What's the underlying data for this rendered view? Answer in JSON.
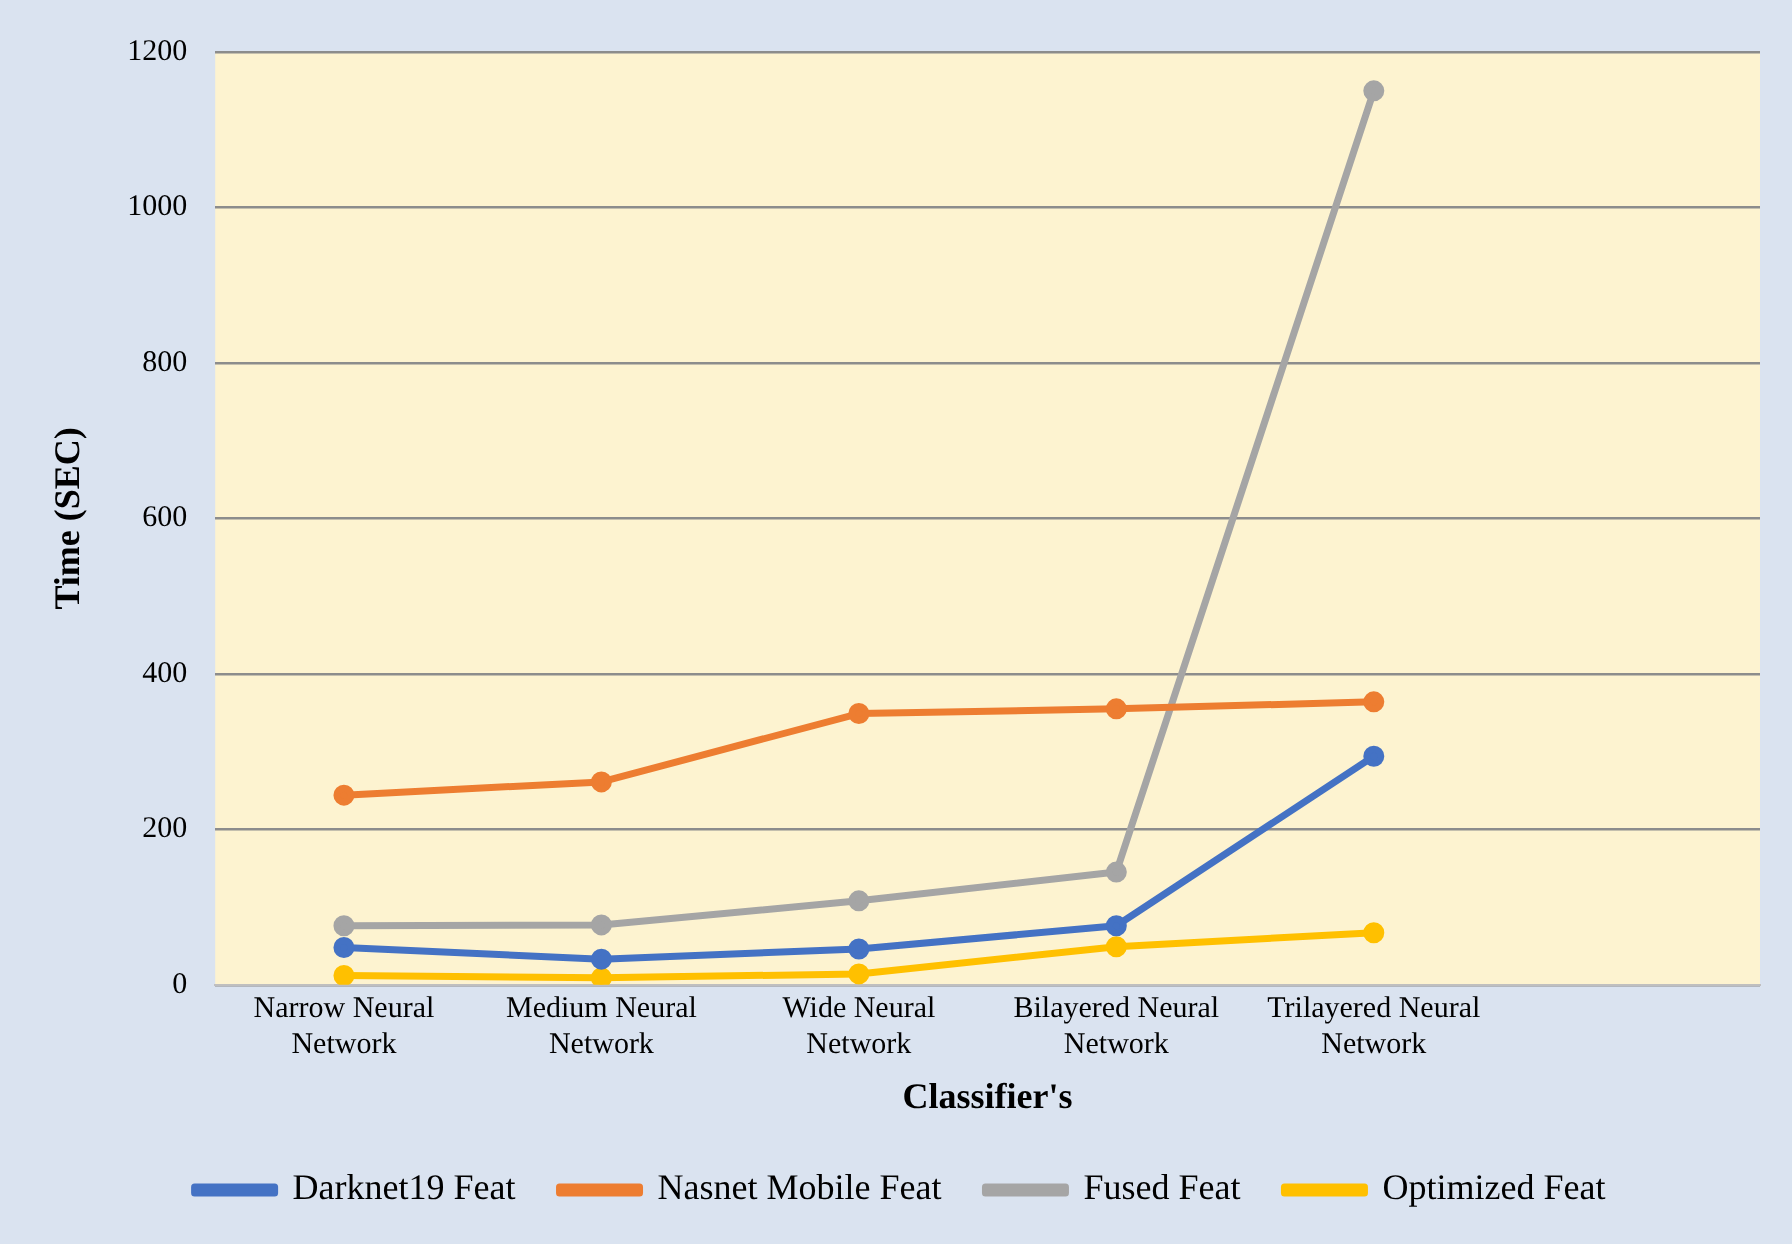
{
  "chart_data": {
    "type": "line",
    "xlabel": "Classifier's",
    "ylabel": "Time (SEC)",
    "categories": [
      "Narrow Neural Network",
      "Medium Neural Network",
      "Wide Neural Network",
      "Bilayered Neural Network",
      "Trilayered Neural Network",
      null
    ],
    "series": [
      {
        "name": "Darknet19 Feat",
        "color": "#4472c4",
        "values": [
          48,
          33,
          46,
          76,
          294,
          null
        ]
      },
      {
        "name": "Nasnet Mobile Feat",
        "color": "#ed7d31",
        "values": [
          244,
          261,
          349,
          355,
          364,
          null
        ]
      },
      {
        "name": "Fused Feat",
        "color": "#a5a5a5",
        "values": [
          76,
          77,
          108,
          145,
          1150,
          null
        ]
      },
      {
        "name": "Optimized Feat",
        "color": "#ffc000",
        "values": [
          12,
          9,
          14,
          49,
          67,
          null
        ]
      }
    ],
    "ylim": [
      0,
      1200
    ],
    "yticks": [
      0,
      200,
      400,
      600,
      800,
      1000,
      1200
    ],
    "grid": "y",
    "legend": "bottom",
    "marker": "circle",
    "line_style": "solid"
  }
}
